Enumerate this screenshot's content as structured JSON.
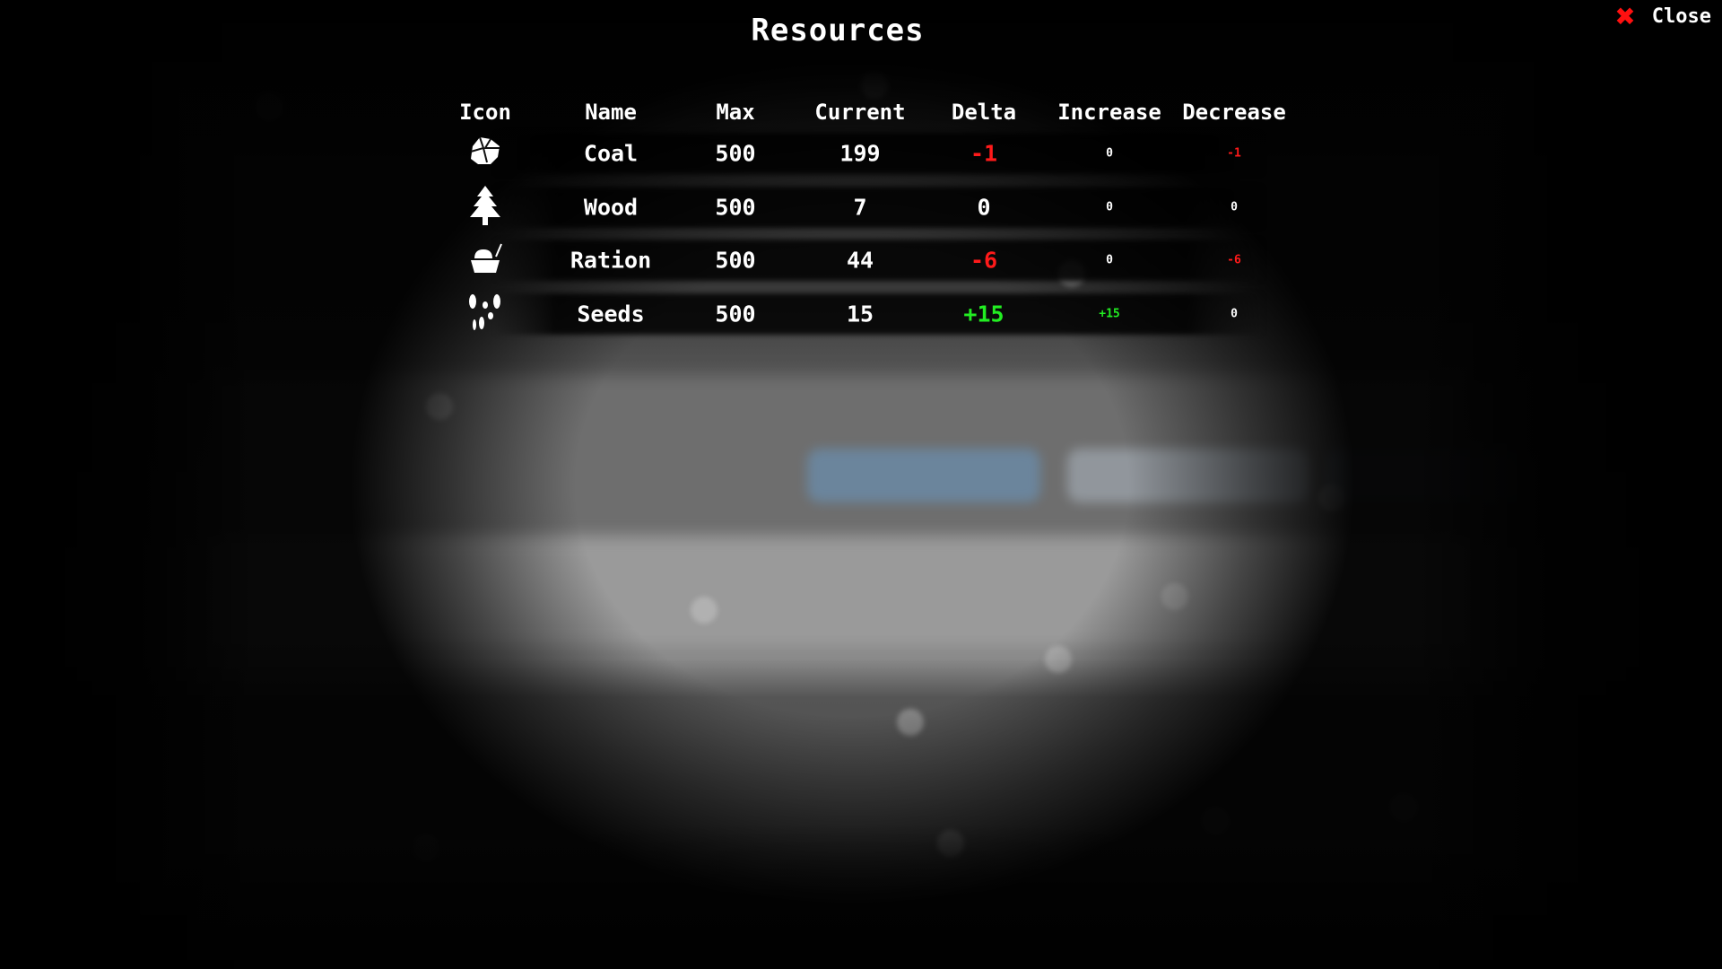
{
  "title": "Resources",
  "close": {
    "icon": "x-icon",
    "label": "Close",
    "icon_color": "#ff1010"
  },
  "columns": [
    "Icon",
    "Name",
    "Max",
    "Current",
    "Delta",
    "Increase",
    "Decrease"
  ],
  "colors": {
    "negative": "#ff1a1a",
    "positive": "#22ee22",
    "neutral": "#ffffff"
  },
  "rows": [
    {
      "icon": "coal-icon",
      "name": "Coal",
      "max": "500",
      "current": "199",
      "delta": "-1",
      "increase": "0",
      "decrease": "-1"
    },
    {
      "icon": "tree-icon",
      "name": "Wood",
      "max": "500",
      "current": "7",
      "delta": "0",
      "increase": "0",
      "decrease": "0"
    },
    {
      "icon": "ration-bowl-icon",
      "name": "Ration",
      "max": "500",
      "current": "44",
      "delta": "-6",
      "increase": "0",
      "decrease": "-6"
    },
    {
      "icon": "seeds-icon",
      "name": "Seeds",
      "max": "500",
      "current": "15",
      "delta": "+15",
      "increase": "+15",
      "decrease": "0"
    }
  ]
}
